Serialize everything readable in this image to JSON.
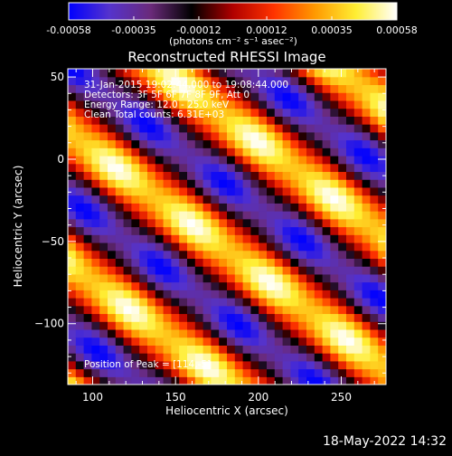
{
  "colorbar": {
    "unit_label": "(photons cm⁻² s⁻¹ asec⁻²)",
    "min": -0.00058,
    "max": 0.00058,
    "tick_values": [
      -0.00058,
      -0.00035,
      -0.00012,
      0.00012,
      0.00035,
      0.00058
    ],
    "tick_labels": [
      "-0.00058",
      "-0.00035",
      "-0.00012",
      "0.00012",
      "0.00035",
      "0.00058"
    ],
    "colors": [
      "#0000ff",
      "#5533cc",
      "#6a2a7a",
      "#000000",
      "#b00000",
      "#ff3300",
      "#ff9900",
      "#ffee33",
      "#ffffff"
    ]
  },
  "chart_data": {
    "type": "heatmap",
    "title": "Reconstructed RHESSI Image",
    "xlabel": "Heliocentric X (arcsec)",
    "ylabel": "Heliocentric Y (arcsec)",
    "xlim": [
      85,
      277
    ],
    "ylim": [
      -137,
      55
    ],
    "xticks": [
      100,
      150,
      200,
      250
    ],
    "yticks": [
      50,
      0,
      -50,
      -100
    ],
    "stripes": {
      "orientation_deg": -38,
      "description_values": "alternating positive (yellow/white) and negative (blue/purple) bands",
      "peaks_positive_approx": [
        [
          112,
          5
        ],
        [
          172,
          -32
        ],
        [
          230,
          -60
        ],
        [
          95,
          -65
        ],
        [
          150,
          -100
        ],
        [
          220,
          -118
        ]
      ],
      "peaks_negative_approx": [
        [
          140,
          -20
        ],
        [
          200,
          -50
        ],
        [
          260,
          -80
        ],
        [
          120,
          -80
        ],
        [
          180,
          -118
        ]
      ]
    }
  },
  "info": {
    "line1": "31-Jan-2015 19:02:44.000 to 19:08:44.000",
    "line2": "Detectors: 3F 5F 6F 7F 8F 9F, Att 0",
    "line3": "Energy Range: 12.0 - 25.0 keV",
    "line4": "Clean    Total counts: 6.31E+03",
    "position": "Position of Peak = [114,-5]"
  },
  "footer": {
    "datetime": "18-May-2022 14:32"
  }
}
